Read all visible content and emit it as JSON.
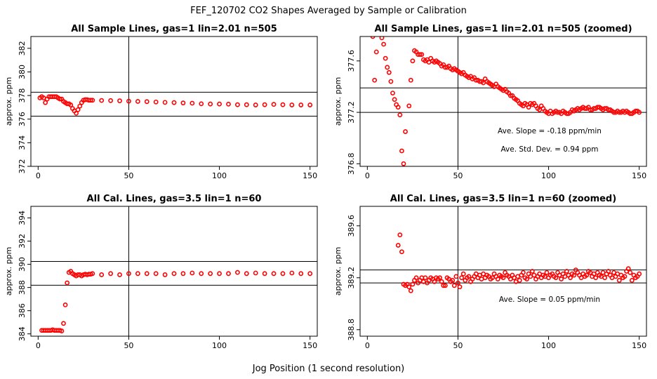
{
  "title": "FEF_120702  CO2 Shapes Averaged by Sample or Calibration",
  "xlabel": "Jog Position (1 second resolution)",
  "colors": {
    "points": "#ff0000",
    "lines": "#000000"
  },
  "chart_data": [
    {
      "type": "scatter",
      "title": "All Sample Lines, gas=1 lin=2.01 n=505",
      "ylabel": "approx. ppm",
      "xlim": [
        -4,
        154
      ],
      "ylim": [
        372,
        383
      ],
      "xticks": [
        0,
        50,
        100,
        150
      ],
      "yticks": [
        372,
        374,
        376,
        378,
        380,
        382
      ],
      "vline": 50,
      "hlines": [
        378.28,
        376.25
      ],
      "series": [
        {
          "name": "sample average",
          "x": [
            1,
            2,
            3,
            4,
            5,
            6,
            7,
            8,
            9,
            10,
            11,
            12,
            13,
            14,
            15,
            16,
            17,
            18,
            19,
            20,
            21,
            22,
            23,
            24,
            25,
            26,
            27,
            28,
            29,
            30,
            35,
            40,
            45,
            50,
            55,
            60,
            65,
            70,
            75,
            80,
            85,
            90,
            95,
            100,
            105,
            110,
            115,
            120,
            125,
            130,
            135,
            140,
            145,
            150
          ],
          "y": [
            377.8,
            377.9,
            377.8,
            377.4,
            377.7,
            377.9,
            377.9,
            377.9,
            377.9,
            377.9,
            377.8,
            377.7,
            377.7,
            377.5,
            377.4,
            377.3,
            377.3,
            377.2,
            376.9,
            376.7,
            376.5,
            376.8,
            377.1,
            377.4,
            377.6,
            377.65,
            377.65,
            377.6,
            377.6,
            377.6,
            377.58,
            377.57,
            377.55,
            377.52,
            377.5,
            377.48,
            377.45,
            377.42,
            377.4,
            377.37,
            377.35,
            377.3,
            377.28,
            377.28,
            377.27,
            377.22,
            377.22,
            377.2,
            377.22,
            377.25,
            377.22,
            377.2,
            377.2,
            377.2
          ]
        }
      ]
    },
    {
      "type": "scatter",
      "title": "All Sample Lines, gas=1 lin=2.01 n=505 (zoomed)",
      "ylabel": "approx. ppm",
      "xlim": [
        -4,
        154
      ],
      "ylim": [
        376.78,
        377.79
      ],
      "xticks": [
        0,
        50,
        100,
        150
      ],
      "yticks": [
        376.8,
        377.2,
        377.6
      ],
      "vline": 50,
      "hlines": [
        377.39,
        377.2
      ],
      "annotations": [
        "Ave. Slope =  -0.18  ppm/min",
        "Ave. Std. Dev. =  0.94  ppm"
      ],
      "series": [
        {
          "name": "sample average (zoomed)",
          "x": [
            3,
            4,
            5,
            8,
            9,
            10,
            11,
            12,
            13,
            14,
            15,
            16,
            17,
            18,
            19,
            20,
            21,
            22,
            23,
            24,
            25,
            26,
            27,
            28,
            29,
            30,
            31,
            32,
            33,
            34,
            35,
            36,
            37,
            38,
            39,
            40,
            41,
            42,
            43,
            44,
            45,
            46,
            47,
            48,
            49,
            50,
            51,
            52,
            53,
            54,
            55,
            56,
            57,
            58,
            59,
            60,
            61,
            62,
            63,
            64,
            65,
            66,
            67,
            68,
            69,
            70,
            71,
            72,
            73,
            74,
            75,
            76,
            77,
            78,
            79,
            80,
            81,
            82,
            83,
            84,
            85,
            86,
            87,
            88,
            89,
            90,
            91,
            92,
            93,
            94,
            95,
            96,
            97,
            98,
            99,
            100,
            101,
            102,
            103,
            104,
            105,
            106,
            107,
            108,
            109,
            110,
            111,
            112,
            113,
            114,
            115,
            116,
            117,
            118,
            119,
            120,
            121,
            122,
            123,
            124,
            125,
            126,
            127,
            128,
            129,
            130,
            131,
            132,
            133,
            134,
            135,
            136,
            137,
            138,
            139,
            140,
            141,
            142,
            143,
            144,
            145,
            146,
            147,
            148,
            149,
            150
          ],
          "y": [
            377.79,
            377.45,
            377.67,
            377.78,
            377.73,
            377.62,
            377.55,
            377.51,
            377.44,
            377.35,
            377.3,
            377.26,
            377.24,
            377.18,
            376.9,
            376.8,
            377.05,
            376.75,
            377.25,
            377.45,
            377.6,
            377.68,
            377.67,
            377.65,
            377.65,
            377.65,
            377.61,
            377.6,
            377.61,
            377.59,
            377.62,
            377.6,
            377.59,
            377.6,
            377.59,
            377.58,
            377.56,
            377.57,
            377.55,
            377.55,
            377.56,
            377.54,
            377.53,
            377.54,
            377.53,
            377.52,
            377.51,
            377.5,
            377.51,
            377.49,
            377.48,
            377.47,
            377.48,
            377.46,
            377.47,
            377.45,
            377.45,
            377.44,
            377.44,
            377.43,
            377.46,
            377.44,
            377.43,
            377.42,
            377.41,
            377.4,
            377.42,
            377.4,
            377.39,
            377.38,
            377.37,
            377.38,
            377.36,
            377.35,
            377.33,
            377.33,
            377.31,
            377.3,
            377.29,
            377.27,
            377.26,
            377.25,
            377.27,
            377.26,
            377.24,
            377.27,
            377.26,
            377.27,
            377.25,
            377.23,
            377.22,
            377.25,
            377.23,
            377.21,
            377.2,
            377.19,
            377.21,
            377.19,
            377.2,
            377.21,
            377.2,
            377.2,
            377.19,
            377.21,
            377.2,
            377.19,
            377.19,
            377.2,
            377.22,
            377.21,
            377.22,
            377.23,
            377.22,
            377.23,
            377.24,
            377.23,
            377.23,
            377.24,
            377.22,
            377.22,
            377.23,
            377.23,
            377.24,
            377.24,
            377.23,
            377.22,
            377.23,
            377.23,
            377.22,
            377.22,
            377.21,
            377.2,
            377.2,
            377.21,
            377.2,
            377.2,
            377.21,
            377.2,
            377.21,
            377.2,
            377.19,
            377.19,
            377.2,
            377.21,
            377.21,
            377.2
          ]
        }
      ]
    },
    {
      "type": "scatter",
      "title": "All Cal. Lines, gas=3.5 lin=1 n=60",
      "ylabel": "approx. ppm",
      "xlim": [
        -4,
        154
      ],
      "ylim": [
        383.8,
        395.0
      ],
      "xticks": [
        0,
        50,
        100,
        150
      ],
      "yticks": [
        384,
        386,
        388,
        390,
        392,
        394
      ],
      "vline": 50,
      "hlines": [
        390.25,
        388.2
      ],
      "series": [
        {
          "name": "calibration average",
          "x": [
            2,
            3,
            4,
            5,
            6,
            7,
            8,
            9,
            10,
            11,
            12,
            13,
            14,
            15,
            16,
            17,
            18,
            19,
            20,
            21,
            22,
            23,
            24,
            25,
            26,
            27,
            28,
            29,
            30,
            35,
            40,
            45,
            50,
            55,
            60,
            65,
            70,
            75,
            80,
            85,
            90,
            95,
            100,
            105,
            110,
            115,
            120,
            125,
            130,
            135,
            140,
            145,
            150
          ],
          "y": [
            384.3,
            384.3,
            384.3,
            384.3,
            384.3,
            384.3,
            384.35,
            384.3,
            384.3,
            384.3,
            384.3,
            384.25,
            384.9,
            386.5,
            388.4,
            389.3,
            389.4,
            389.2,
            389.1,
            389.0,
            389.1,
            389.1,
            389.0,
            389.1,
            389.15,
            389.1,
            389.15,
            389.15,
            389.2,
            389.1,
            389.2,
            389.1,
            389.2,
            389.2,
            389.2,
            389.2,
            389.1,
            389.2,
            389.2,
            389.25,
            389.2,
            389.2,
            389.2,
            389.2,
            389.3,
            389.2,
            389.25,
            389.2,
            389.2,
            389.2,
            389.25,
            389.2,
            389.2
          ]
        }
      ]
    },
    {
      "type": "scatter",
      "title": "All Cal. Lines, gas=3.5 lin=1 n=60 (zoomed)",
      "ylabel": "approx. ppm",
      "xlim": [
        -4,
        154
      ],
      "ylim": [
        388.75,
        389.75
      ],
      "xticks": [
        0,
        50,
        100,
        150
      ],
      "yticks": [
        388.8,
        389.2,
        389.6
      ],
      "vline": 50,
      "hlines": [
        389.26,
        389.16
      ],
      "annotations": [
        "Ave. Slope =  0.05  ppm/min"
      ],
      "series": [
        {
          "name": "calibration average (zoomed)",
          "x": [
            17,
            18,
            19,
            20,
            21,
            22,
            23,
            24,
            25,
            26,
            27,
            28,
            29,
            30,
            31,
            32,
            33,
            34,
            35,
            36,
            37,
            38,
            39,
            40,
            41,
            42,
            43,
            44,
            45,
            46,
            47,
            48,
            49,
            50,
            51,
            52,
            53,
            54,
            55,
            56,
            57,
            58,
            59,
            60,
            61,
            62,
            63,
            64,
            65,
            66,
            67,
            68,
            69,
            70,
            71,
            72,
            73,
            74,
            75,
            76,
            77,
            78,
            79,
            80,
            81,
            82,
            83,
            84,
            85,
            86,
            87,
            88,
            89,
            90,
            91,
            92,
            93,
            94,
            95,
            96,
            97,
            98,
            99,
            100,
            101,
            102,
            103,
            104,
            105,
            106,
            107,
            108,
            109,
            110,
            111,
            112,
            113,
            114,
            115,
            116,
            117,
            118,
            119,
            120,
            121,
            122,
            123,
            124,
            125,
            126,
            127,
            128,
            129,
            130,
            131,
            132,
            133,
            134,
            135,
            136,
            137,
            138,
            139,
            140,
            141,
            142,
            143,
            144,
            145,
            146,
            147,
            148,
            149,
            150
          ],
          "y": [
            389.45,
            389.53,
            389.4,
            389.15,
            389.14,
            389.15,
            389.13,
            389.1,
            389.15,
            389.18,
            389.2,
            389.16,
            389.18,
            389.2,
            389.17,
            389.2,
            389.16,
            389.18,
            389.2,
            389.19,
            389.17,
            389.2,
            389.19,
            389.2,
            389.17,
            389.14,
            389.14,
            389.2,
            389.19,
            389.17,
            389.18,
            389.14,
            389.21,
            389.16,
            389.13,
            389.2,
            389.23,
            389.18,
            389.2,
            389.21,
            389.17,
            389.19,
            389.21,
            389.23,
            389.2,
            389.22,
            389.19,
            389.23,
            389.2,
            389.22,
            389.21,
            389.19,
            389.2,
            389.23,
            389.21,
            389.19,
            389.22,
            389.21,
            389.2,
            389.24,
            389.22,
            389.21,
            389.19,
            389.22,
            389.2,
            389.17,
            389.21,
            389.18,
            389.22,
            389.24,
            389.2,
            389.19,
            389.23,
            389.21,
            389.25,
            389.22,
            389.19,
            389.21,
            389.23,
            389.2,
            389.22,
            389.21,
            389.24,
            389.2,
            389.22,
            389.23,
            389.21,
            389.2,
            389.24,
            389.22,
            389.19,
            389.23,
            389.21,
            389.25,
            389.22,
            389.2,
            389.23,
            389.22,
            389.26,
            389.24,
            389.22,
            389.2,
            389.23,
            389.21,
            389.22,
            389.25,
            389.24,
            389.21,
            389.23,
            389.2,
            389.24,
            389.22,
            389.21,
            389.24,
            389.2,
            389.23,
            389.25,
            389.22,
            389.2,
            389.24,
            389.21,
            389.23,
            389.18,
            389.22,
            389.2,
            389.21,
            389.25,
            389.27,
            389.24,
            389.18,
            389.22,
            389.2,
            389.21,
            389.23
          ]
        }
      ]
    }
  ]
}
